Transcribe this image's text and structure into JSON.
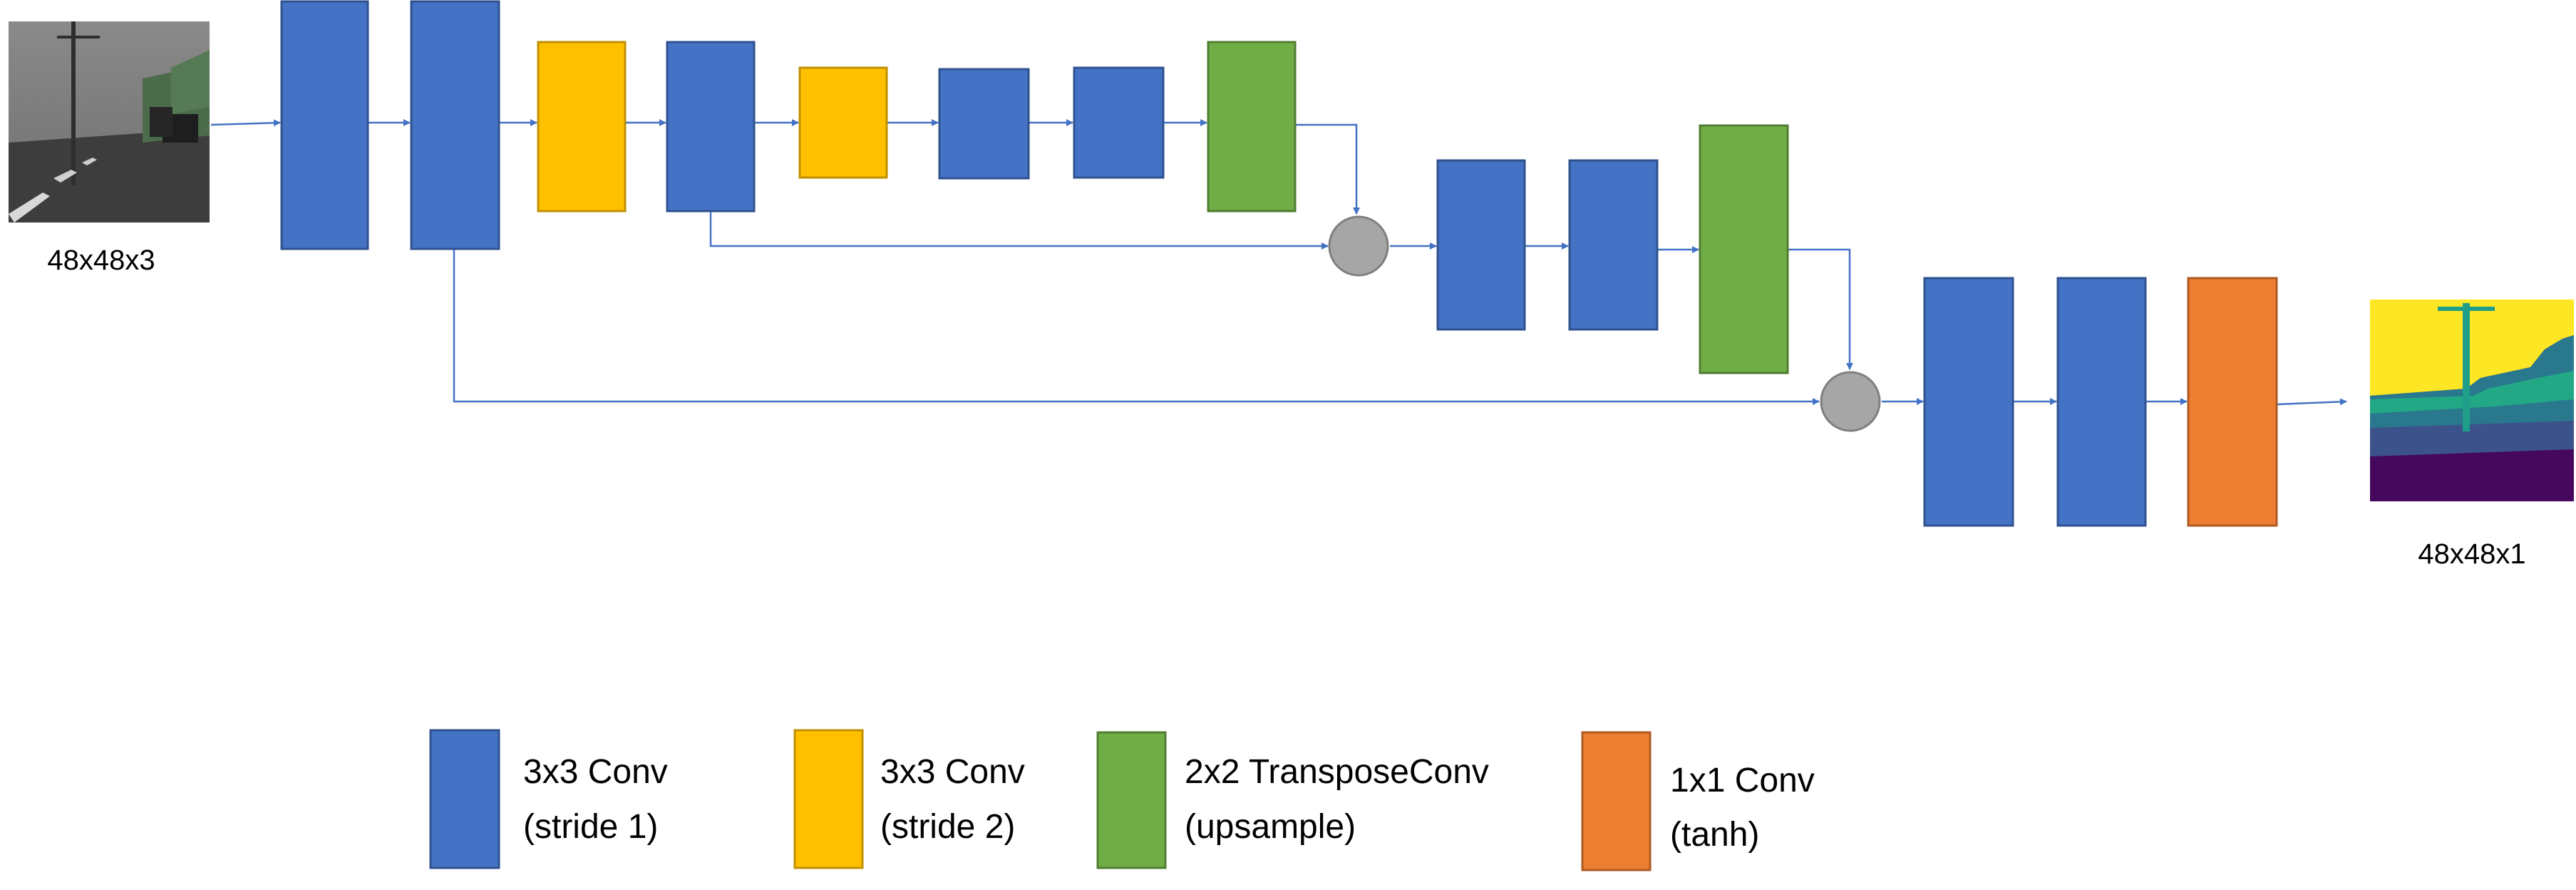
{
  "colors": {
    "conv3x3_stride1": "#4472c4",
    "conv3x3_stride2": "#ffc000",
    "transpose_conv": "#70ad47",
    "conv1x1_tanh": "#ed7d31",
    "merge_node": "#a6a6a6",
    "arrow": "#4472c4"
  },
  "input": {
    "label": "48x48x3",
    "image": "road-scene-grayscale-photo"
  },
  "output": {
    "label": "48x48x1",
    "image": "segmentation-mask-output"
  },
  "legend": [
    {
      "kind": "conv3x3_stride1",
      "line1": "3x3 Conv",
      "line2": "(stride 1)"
    },
    {
      "kind": "conv3x3_stride2",
      "line1": "3x3 Conv",
      "line2": "(stride 2)"
    },
    {
      "kind": "transpose_conv",
      "line1": "2x2 TransposeConv",
      "line2": "(upsample)"
    },
    {
      "kind": "conv1x1_tanh",
      "line1": "1x1 Conv",
      "line2": "(tanh)"
    }
  ]
}
